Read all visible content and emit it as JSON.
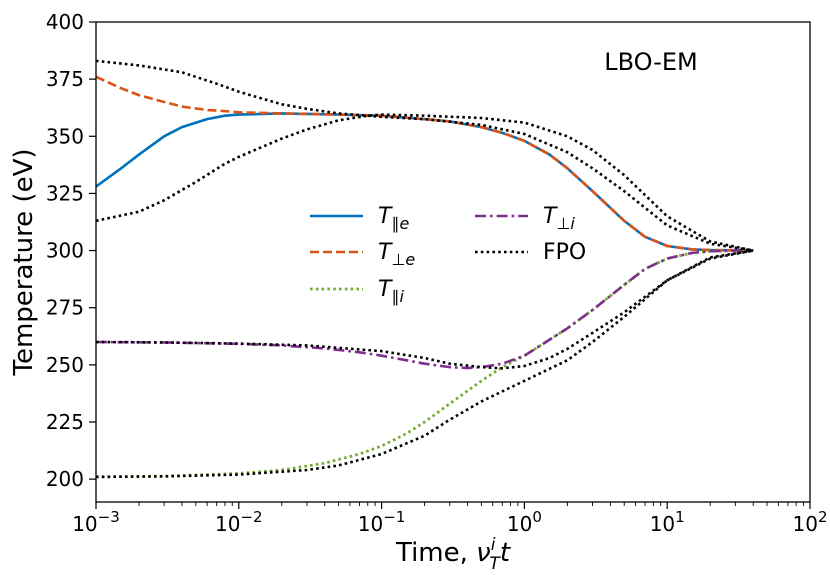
{
  "chart_data": {
    "type": "line",
    "title": "",
    "annotation": "LBO-EM",
    "xlabel": "Time, ν_T^i t",
    "ylabel": "Temperature (eV)",
    "xscale": "log",
    "xlim": [
      0.001,
      100
    ],
    "ylim": [
      190,
      400
    ],
    "grid": false,
    "legend_position": "center-left",
    "legend_columns": 2,
    "x_ticks": [
      0.001,
      0.01,
      0.1,
      1,
      10,
      100
    ],
    "x_tick_labels": [
      {
        "base": "10",
        "exp": "−3"
      },
      {
        "base": "10",
        "exp": "−2"
      },
      {
        "base": "10",
        "exp": "−1"
      },
      {
        "base": "10",
        "exp": "0"
      },
      {
        "base": "10",
        "exp": "1"
      },
      {
        "base": "10",
        "exp": "2"
      }
    ],
    "y_ticks": [
      200,
      225,
      250,
      275,
      300,
      325,
      350,
      375,
      400
    ],
    "series": [
      {
        "name": "T∥e",
        "sym": "T",
        "sub": "∥e",
        "color": "#0072bd",
        "dash": "solid",
        "width": 2.6,
        "x": [
          0.001,
          0.0015,
          0.002,
          0.003,
          0.004,
          0.006,
          0.008,
          0.01,
          0.02,
          0.05,
          0.1,
          0.2,
          0.3,
          0.5,
          0.7,
          1,
          1.5,
          2,
          3,
          5,
          7,
          10,
          15,
          20,
          30,
          40
        ],
        "y": [
          328,
          336,
          342,
          350,
          354,
          357.5,
          359,
          359.5,
          360,
          359.5,
          359,
          357.5,
          356.5,
          354,
          351.5,
          348,
          342,
          336,
          326,
          313,
          306,
          302,
          300.5,
          300.2,
          300.1,
          300
        ]
      },
      {
        "name": "T⊥e",
        "sym": "T",
        "sub": "⊥e",
        "color": "#d95319",
        "dash": "dashed",
        "width": 2.6,
        "x": [
          0.001,
          0.0015,
          0.002,
          0.003,
          0.004,
          0.006,
          0.008,
          0.01,
          0.02,
          0.05,
          0.1,
          0.2,
          0.3,
          0.5,
          0.7,
          1,
          1.5,
          2,
          3,
          5,
          7,
          10,
          15,
          20,
          30,
          40
        ],
        "y": [
          376,
          371,
          368,
          365,
          363,
          361.5,
          361,
          360.5,
          360,
          359.5,
          359,
          357.5,
          356.5,
          354,
          351.5,
          348,
          342,
          336,
          326,
          313,
          306,
          302,
          300.5,
          300.2,
          300.1,
          300
        ]
      },
      {
        "name": "T∥i",
        "sym": "T",
        "sub": "∥i",
        "color": "#77ac30",
        "dash": "dotted",
        "width": 2.8,
        "x": [
          0.001,
          0.003,
          0.01,
          0.02,
          0.04,
          0.07,
          0.1,
          0.15,
          0.2,
          0.3,
          0.5,
          0.7,
          1,
          1.5,
          2,
          3,
          5,
          7,
          10,
          15,
          20,
          30,
          40
        ],
        "y": [
          201,
          201.3,
          202.5,
          204,
          207,
          211,
          214.5,
          220,
          225,
          233,
          243,
          249,
          254,
          261,
          266,
          274,
          285,
          292,
          296.5,
          299,
          299.7,
          300,
          300
        ]
      },
      {
        "name": "T⊥i",
        "sym": "T",
        "sub": "⊥i",
        "color": "#7e2f8e",
        "dash": "dashdot",
        "width": 2.6,
        "x": [
          0.001,
          0.003,
          0.01,
          0.02,
          0.04,
          0.07,
          0.1,
          0.15,
          0.2,
          0.3,
          0.4,
          0.5,
          0.7,
          1,
          1.5,
          2,
          3,
          5,
          7,
          10,
          15,
          20,
          30,
          40
        ],
        "y": [
          260,
          259.8,
          259.2,
          258.5,
          257.2,
          255.5,
          254,
          252,
          250.5,
          249,
          248.6,
          249,
          250.5,
          254,
          261,
          266,
          274,
          285,
          292,
          296.5,
          299,
          299.7,
          300,
          300
        ]
      },
      {
        "name": "FPO",
        "sym": "FPO",
        "sub": "",
        "color": "#000000",
        "dash": "dotted",
        "width": 2.6,
        "x": [
          0.001,
          0.002,
          0.004,
          0.007,
          0.01,
          0.02,
          0.03,
          0.05,
          0.1,
          0.2,
          0.5,
          1,
          2,
          3,
          5,
          10,
          20,
          40
        ],
        "y": [
          383,
          381,
          378,
          373,
          369.5,
          364,
          362,
          360,
          358.5,
          357.5,
          355,
          351,
          343,
          336,
          326,
          311,
          303,
          300
        ]
      },
      {
        "name": "",
        "sym": "",
        "sub": "",
        "color": "#000000",
        "dash": "dotted",
        "width": 2.6,
        "x": [
          0.001,
          0.002,
          0.003,
          0.005,
          0.008,
          0.01,
          0.02,
          0.03,
          0.05,
          0.08,
          0.1,
          0.2,
          0.5,
          1,
          2,
          3,
          5,
          10,
          20,
          40
        ],
        "y": [
          313,
          317,
          322,
          330,
          338,
          341,
          349,
          353,
          357,
          359,
          359.5,
          359,
          358,
          356,
          350,
          344,
          333,
          315,
          304,
          300
        ]
      },
      {
        "name": "",
        "sym": "",
        "sub": "",
        "color": "#000000",
        "dash": "dotted",
        "width": 2.6,
        "x": [
          0.001,
          0.003,
          0.01,
          0.03,
          0.1,
          0.2,
          0.3,
          0.5,
          0.7,
          1,
          1.5,
          2,
          3,
          5,
          10,
          20,
          40
        ],
        "y": [
          260,
          259.8,
          259.3,
          258.5,
          256,
          253,
          250.5,
          249,
          248.5,
          249.5,
          253,
          257,
          264,
          273,
          287,
          296.5,
          300
        ]
      },
      {
        "name": "",
        "sym": "",
        "sub": "",
        "color": "#000000",
        "dash": "dotted",
        "width": 2.6,
        "x": [
          0.001,
          0.003,
          0.01,
          0.03,
          0.05,
          0.1,
          0.2,
          0.3,
          0.5,
          1,
          2,
          3,
          5,
          10,
          20,
          40
        ],
        "y": [
          201,
          201.2,
          202,
          204,
          206,
          211,
          219,
          226,
          234,
          243,
          252,
          260,
          271,
          287,
          297,
          300
        ]
      }
    ]
  }
}
